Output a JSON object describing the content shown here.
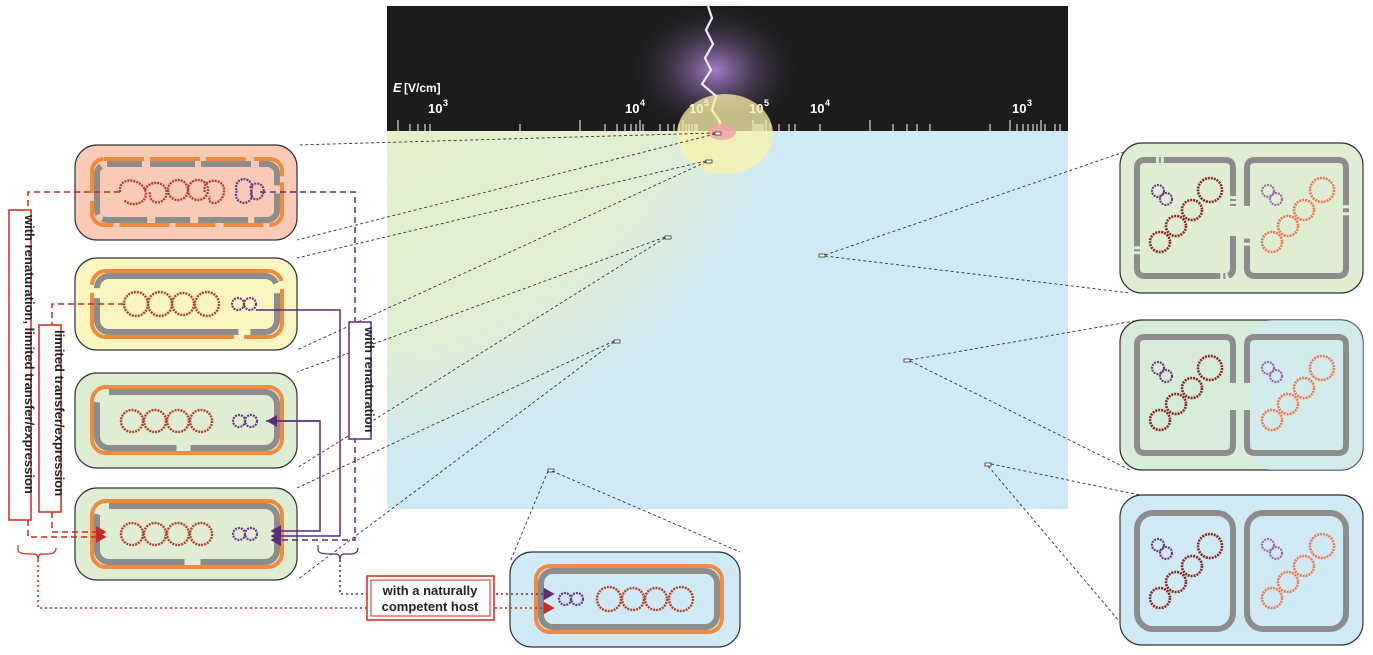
{
  "scale": {
    "axis_label": "E",
    "axis_unit": "[V/cm]",
    "ticks_left": [
      "10",
      "10",
      "10"
    ],
    "ticks_left_exp": [
      "3",
      "4",
      "5"
    ],
    "ticks_right": [
      "10",
      "10",
      "10"
    ],
    "ticks_right_exp": [
      "5",
      "4",
      "3"
    ]
  },
  "labels": {
    "with_renaturation": "with renaturation",
    "limited_transfer": "limited transfer/expression",
    "renaturation_limited": "with renaturation, limited transfer/expression",
    "competent_host_line1": "with a naturally",
    "competent_host_line2": "competent host"
  },
  "colors": {
    "zone_outer": "#cfe9f5",
    "zone_mid": "#e2efcf",
    "zone_inner": "#f8f2b8",
    "zone_core": "#f6b7b7",
    "red_dna": "#b8412e",
    "purple_dna": "#6e3a8a",
    "wall_orange": "#f08a3c",
    "wall_gray": "#8c8c8c",
    "arrow_red": "#cc2a1e",
    "arrow_purple": "#5e2a7a",
    "lightning": "#c9a8f2"
  }
}
